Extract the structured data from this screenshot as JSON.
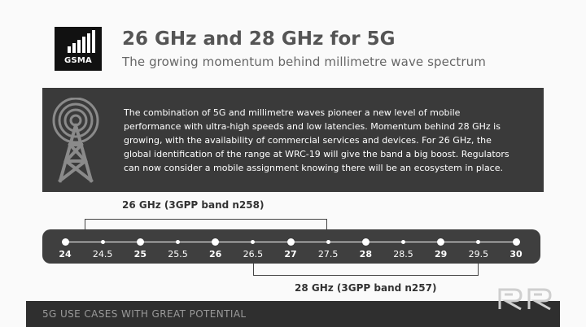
{
  "header": {
    "logo_text": "GSMA",
    "title": "26 GHz and 28 GHz for 5G",
    "subtitle": "The growing momentum behind millimetre wave spectrum"
  },
  "info": {
    "icon": "radio-tower-icon",
    "lines": [
      "The combination of 5G and millimetre waves pioneer a new level of mobile",
      "performance with ultra-high speeds and low latencies. Momentum behind 28 GHz is",
      "growing, with the availability of commercial services and devices. For 26 GHz, the",
      "global identification of the range at WRC-19 will give the band a big boost. Regulators",
      "can now consider a mobile assignment knowing there will be an ecosystem in place."
    ]
  },
  "frequency_axis": {
    "ticks": [
      {
        "label": "24",
        "major": true
      },
      {
        "label": "24.5",
        "major": false
      },
      {
        "label": "25",
        "major": true
      },
      {
        "label": "25.5",
        "major": false
      },
      {
        "label": "26",
        "major": true
      },
      {
        "label": "26.5",
        "major": false
      },
      {
        "label": "27",
        "major": true
      },
      {
        "label": "27.5",
        "major": false
      },
      {
        "label": "28",
        "major": true
      },
      {
        "label": "28.5",
        "major": false
      },
      {
        "label": "29",
        "major": true
      },
      {
        "label": "29.5",
        "major": false
      },
      {
        "label": "30",
        "major": true
      }
    ],
    "range": [
      24,
      30
    ]
  },
  "bands": {
    "band_26": {
      "label": "26 GHz (3GPP band n258)",
      "range": [
        24.25,
        27.5
      ]
    },
    "band_28": {
      "label": "28 GHz (3GPP band n257)",
      "range": [
        26.5,
        29.5
      ]
    }
  },
  "footer": {
    "label": "5G USE CASES WITH GREAT POTENTIAL"
  },
  "colors": {
    "panel_dark": "#3a3a3a",
    "axis_panel": "#3f3f3f",
    "title_gray": "#555555",
    "footer_bg": "#2f2f2f"
  }
}
